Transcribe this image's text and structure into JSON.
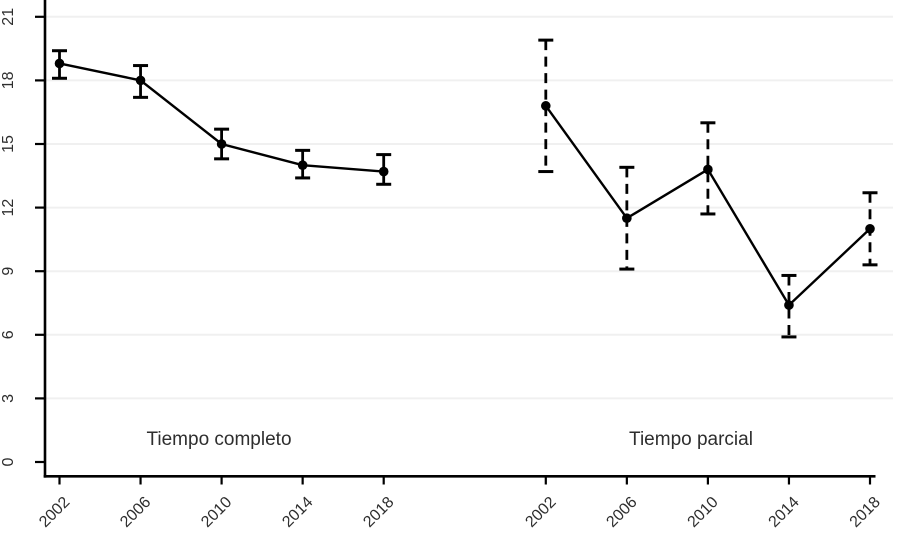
{
  "chart_data": {
    "type": "line",
    "title": "",
    "xlabel": "",
    "ylabel": "",
    "ylim": [
      0,
      21
    ],
    "yticks": [
      0,
      3,
      6,
      9,
      12,
      15,
      18,
      21
    ],
    "ytick_labels": [
      "0",
      "3",
      "6",
      "9",
      "12",
      "15",
      "18",
      "21"
    ],
    "categories": [
      "2002",
      "2006",
      "2010",
      "2014",
      "2018"
    ],
    "grid": "horizontal gridlines at y ticks (none at 0)",
    "legend": "none",
    "marker": "filled-circle",
    "error_bars": true,
    "panels": [
      {
        "label": "Tiempo completo",
        "ci_line_style": "solid",
        "series": [
          {
            "x": "2002",
            "y": 18.8,
            "ci_low": 18.1,
            "ci_high": 19.4
          },
          {
            "x": "2006",
            "y": 18.0,
            "ci_low": 17.2,
            "ci_high": 18.7
          },
          {
            "x": "2010",
            "y": 15.0,
            "ci_low": 14.3,
            "ci_high": 15.7
          },
          {
            "x": "2014",
            "y": 14.0,
            "ci_low": 13.4,
            "ci_high": 14.7
          },
          {
            "x": "2018",
            "y": 13.7,
            "ci_low": 13.1,
            "ci_high": 14.5
          }
        ]
      },
      {
        "label": "Tiempo parcial",
        "ci_line_style": "dashed",
        "series": [
          {
            "x": "2002",
            "y": 16.8,
            "ci_low": 13.7,
            "ci_high": 19.9
          },
          {
            "x": "2006",
            "y": 11.5,
            "ci_low": 9.1,
            "ci_high": 13.9
          },
          {
            "x": "2010",
            "y": 13.8,
            "ci_low": 11.7,
            "ci_high": 16.0
          },
          {
            "x": "2014",
            "y": 7.4,
            "ci_low": 5.9,
            "ci_high": 8.8
          },
          {
            "x": "2018",
            "y": 11.0,
            "ci_low": 9.3,
            "ci_high": 12.7
          }
        ]
      }
    ],
    "colors": {
      "series": "#000000",
      "axis": "#000000",
      "text": "#2e2e2e",
      "gridline": "#f0f0f0",
      "background": "#ffffff"
    }
  }
}
